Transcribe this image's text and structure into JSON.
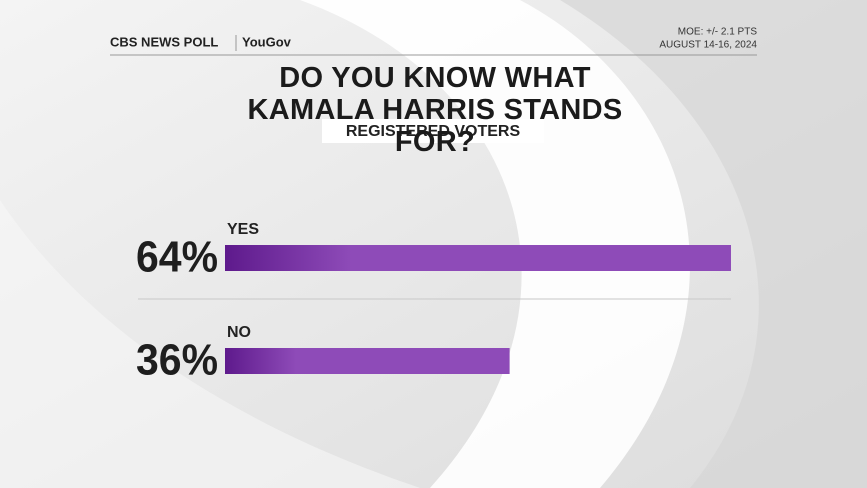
{
  "chart_data": {
    "type": "bar",
    "orientation": "horizontal",
    "title": "DO YOU KNOW WHAT KAMALA HARRIS STANDS FOR?",
    "subtitle": "REGISTERED VOTERS",
    "source": [
      "CBS NEWS POLL",
      "YouGov"
    ],
    "notes": [
      "MOE: +/- 2.1 PTS",
      "AUGUST 14-16, 2024"
    ],
    "categories": [
      "YES",
      "NO"
    ],
    "values": [
      64,
      36
    ],
    "value_labels": [
      "64%",
      "36%"
    ],
    "color": "#8e4bb8",
    "xlim": [
      0,
      100
    ]
  }
}
